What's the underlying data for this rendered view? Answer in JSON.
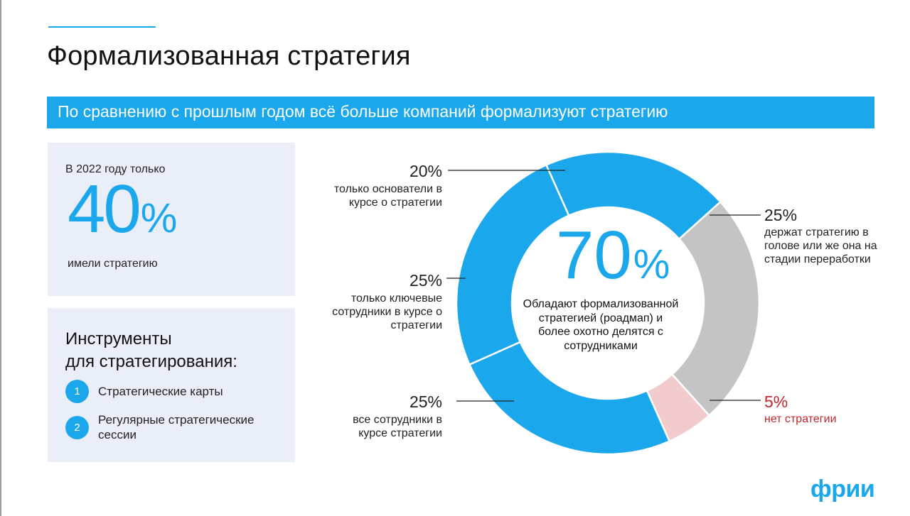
{
  "header": {
    "title": "Формализованная стратегия",
    "banner": "По сравнению с прошлым годом всё больше компаний формализуют стратегию"
  },
  "stat_card": {
    "prefix": "В 2022 году только",
    "value": "40",
    "unit": "%",
    "suffix": "имели стратегию"
  },
  "tools": {
    "heading_line1": "Инструменты",
    "heading_line2": "для стратегирования:",
    "items": [
      {
        "num": "1",
        "label": "Стратегические карты"
      },
      {
        "num": "2",
        "label": "Регулярные стратегические сессии"
      }
    ]
  },
  "chart_data": {
    "type": "pie",
    "variant": "donut",
    "center_value": "70",
    "center_unit": "%",
    "center_text": "Обладают формализованной стратегией (роадмап) и более охотно делятся с сотрудниками",
    "slices": [
      {
        "value": 20,
        "label": "20%",
        "description": "только основатели в курсе о стратегии",
        "color": "#1aa7ec"
      },
      {
        "value": 25,
        "label": "25%",
        "description": "держат стратегию в голове или же она на стадии переработки",
        "color": "#c4c4c4"
      },
      {
        "value": 5,
        "label": "5%",
        "description": "нет стратегии",
        "color": "#f2cccc"
      },
      {
        "value": 25,
        "label": "25%",
        "description": "все сотрудники в курсе стратегии",
        "color": "#1aa7ec"
      },
      {
        "value": 25,
        "label": "25%",
        "description": "только ключевые сотрудники в курсе о стратегии",
        "color": "#1aa7ec"
      }
    ]
  },
  "logo": "фрии",
  "colors": {
    "accent": "#1aa7ec",
    "card_bg": "#e9eef8",
    "gray_slice": "#c4c4c4",
    "pink_slice": "#f2cccc",
    "red_text": "#c0262d"
  }
}
